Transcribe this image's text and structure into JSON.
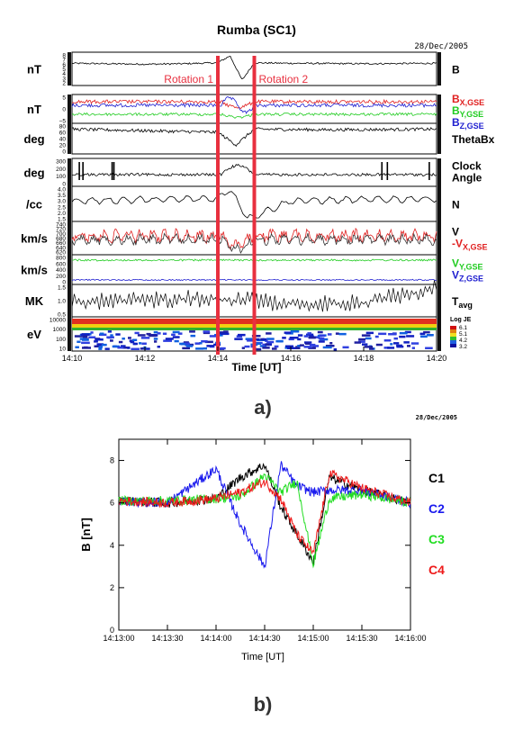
{
  "figure_a": {
    "title": "Rumba (SC1)",
    "date": "28/Dec/2005",
    "label": "a)",
    "xlabel": "Time [UT]",
    "x_ticks": [
      "14:10",
      "14:12",
      "14:14",
      "14:16",
      "14:18",
      "14:20"
    ],
    "rotation_labels": [
      "Rotation 1",
      "Rotation 2"
    ],
    "rotation_color": "#e8303f",
    "colorbar": {
      "title": "Log JE",
      "ticks": [
        "6.1",
        "5.1",
        "4.2",
        "3.2"
      ]
    },
    "panels": [
      {
        "unit": "nT",
        "yticks": [
          "8",
          "7",
          "6",
          "5",
          "4",
          "3",
          "2"
        ],
        "legend": [
          {
            "main": "B",
            "sub": "",
            "color": "#000000"
          }
        ]
      },
      {
        "unit": "nT",
        "yticks": [
          "5",
          "0",
          "−5"
        ],
        "legend": [
          {
            "main": "B",
            "sub": "X,GSE",
            "color": "#e02020"
          },
          {
            "main": "B",
            "sub": "Y,GSE",
            "color": "#22cc22"
          },
          {
            "main": "B",
            "sub": "Z,GSE",
            "color": "#2020d0"
          }
        ]
      },
      {
        "unit": "deg",
        "yticks": [
          "80",
          "60",
          "40",
          "20",
          "0"
        ],
        "legend": [
          {
            "main": "ThetaBx",
            "sub": "",
            "color": "#000000"
          }
        ]
      },
      {
        "unit": "deg",
        "yticks": [
          "300",
          "200",
          "100",
          "0"
        ],
        "legend": [
          {
            "main": "Clock",
            "sub": "",
            "color": "#000000"
          },
          {
            "main": "Angle",
            "sub": "",
            "color": "#000000"
          }
        ]
      },
      {
        "unit": "/cc",
        "yticks": [
          "4.0",
          "3.5",
          "3.0",
          "2.5",
          "2.0",
          "1.5"
        ],
        "legend": [
          {
            "main": "N",
            "sub": "",
            "color": "#000000"
          }
        ]
      },
      {
        "unit": "km/s",
        "yticks": [
          "740",
          "720",
          "700",
          "680",
          "660",
          "640",
          "620"
        ],
        "legend": [
          {
            "main": "V",
            "sub": "",
            "color": "#000000"
          },
          {
            "main": "-V",
            "sub": "X,GSE",
            "color": "#e02020"
          }
        ]
      },
      {
        "unit": "km/s",
        "yticks": [
          "800",
          "600",
          "400",
          "200",
          "0"
        ],
        "legend": [
          {
            "main": "V",
            "sub": "Y,GSE",
            "color": "#22cc22"
          },
          {
            "main": "V",
            "sub": "Z,GSE",
            "color": "#2020d0"
          }
        ]
      },
      {
        "unit": "MK",
        "yticks": [
          "1.5",
          "1.0",
          "0.5"
        ],
        "legend": [
          {
            "main": "T",
            "sub": "avg",
            "color": "#000000"
          }
        ]
      },
      {
        "unit": "eV",
        "yticks": [
          "10000",
          "1000",
          "100",
          "10"
        ],
        "legend": []
      }
    ]
  },
  "figure_b": {
    "date": "28/Dec/2005",
    "label": "b)",
    "xlabel": "Time [UT]",
    "ylabel": "B [nT]",
    "x_ticks": [
      "14:13:00",
      "14:13:30",
      "14:14:00",
      "14:14:30",
      "14:15:00",
      "14:15:30",
      "14:16:00"
    ],
    "y_ticks": [
      "0",
      "2",
      "4",
      "6",
      "8"
    ],
    "legend": [
      {
        "name": "C1",
        "color": "#000000"
      },
      {
        "name": "C2",
        "color": "#1a1aee"
      },
      {
        "name": "C3",
        "color": "#22dd22"
      },
      {
        "name": "C4",
        "color": "#ee1a1a"
      }
    ]
  },
  "chart_data": [
    {
      "type": "line",
      "title": "Rumba (SC1)",
      "xlabel": "Time [UT]",
      "xlim": [
        "14:10",
        "14:20"
      ],
      "rotation_intervals": [
        [
          "14:14:00",
          "14:14:35"
        ],
        [
          "14:14:35",
          "14:15:00"
        ]
      ],
      "series": [
        {
          "panel": "B",
          "unit": "nT",
          "x": [
            "14:10",
            "14:12",
            "14:13",
            "14:14",
            "14:14:20",
            "14:14:40",
            "14:15",
            "14:16",
            "14:18",
            "14:20"
          ],
          "values": [
            6.2,
            6.0,
            6.1,
            6.3,
            7.8,
            2.6,
            6.3,
            6.2,
            6.1,
            6.2
          ]
        },
        {
          "panel": "ThetaBx",
          "unit": "deg",
          "x": [
            "14:10",
            "14:12",
            "14:14",
            "14:14:30",
            "14:15",
            "14:17",
            "14:20"
          ],
          "values": [
            70,
            65,
            60,
            20,
            70,
            68,
            70
          ]
        },
        {
          "panel": "N",
          "unit": "/cc",
          "x": [
            "14:10",
            "14:12",
            "14:14",
            "14:14:20",
            "14:14:50",
            "14:16",
            "14:18",
            "14:20"
          ],
          "values": [
            3.0,
            3.1,
            3.2,
            4.0,
            1.5,
            3.0,
            3.1,
            3.2
          ]
        },
        {
          "panel": "Tavg",
          "unit": "MK",
          "x": [
            "14:10",
            "14:12",
            "14:14",
            "14:16",
            "14:18",
            "14:20"
          ],
          "values": [
            0.9,
            1.0,
            1.1,
            0.8,
            0.9,
            1.6
          ]
        }
      ]
    },
    {
      "type": "line",
      "xlabel": "Time [UT]",
      "ylabel": "B [nT]",
      "ylim": [
        0,
        9
      ],
      "xlim": [
        "14:13:00",
        "14:16:00"
      ],
      "x": [
        "14:13:00",
        "14:13:30",
        "14:14:00",
        "14:14:15",
        "14:14:30",
        "14:14:40",
        "14:14:50",
        "14:15:00",
        "14:15:10",
        "14:15:30",
        "14:16:00"
      ],
      "series": [
        {
          "name": "C1",
          "values": [
            6.1,
            6.0,
            6.2,
            7.2,
            7.8,
            5.8,
            4.5,
            3.2,
            7.2,
            6.6,
            6.0
          ]
        },
        {
          "name": "C2",
          "values": [
            6.1,
            6.0,
            7.6,
            5.0,
            3.0,
            7.8,
            6.8,
            6.5,
            6.6,
            6.6,
            6.0
          ]
        },
        {
          "name": "C3",
          "values": [
            6.1,
            6.1,
            6.2,
            6.3,
            7.3,
            6.5,
            7.0,
            3.1,
            6.2,
            6.4,
            6.0
          ]
        },
        {
          "name": "C4",
          "values": [
            6.1,
            6.0,
            6.2,
            6.5,
            7.0,
            6.2,
            4.5,
            3.6,
            7.4,
            6.7,
            6.0
          ]
        }
      ]
    }
  ]
}
